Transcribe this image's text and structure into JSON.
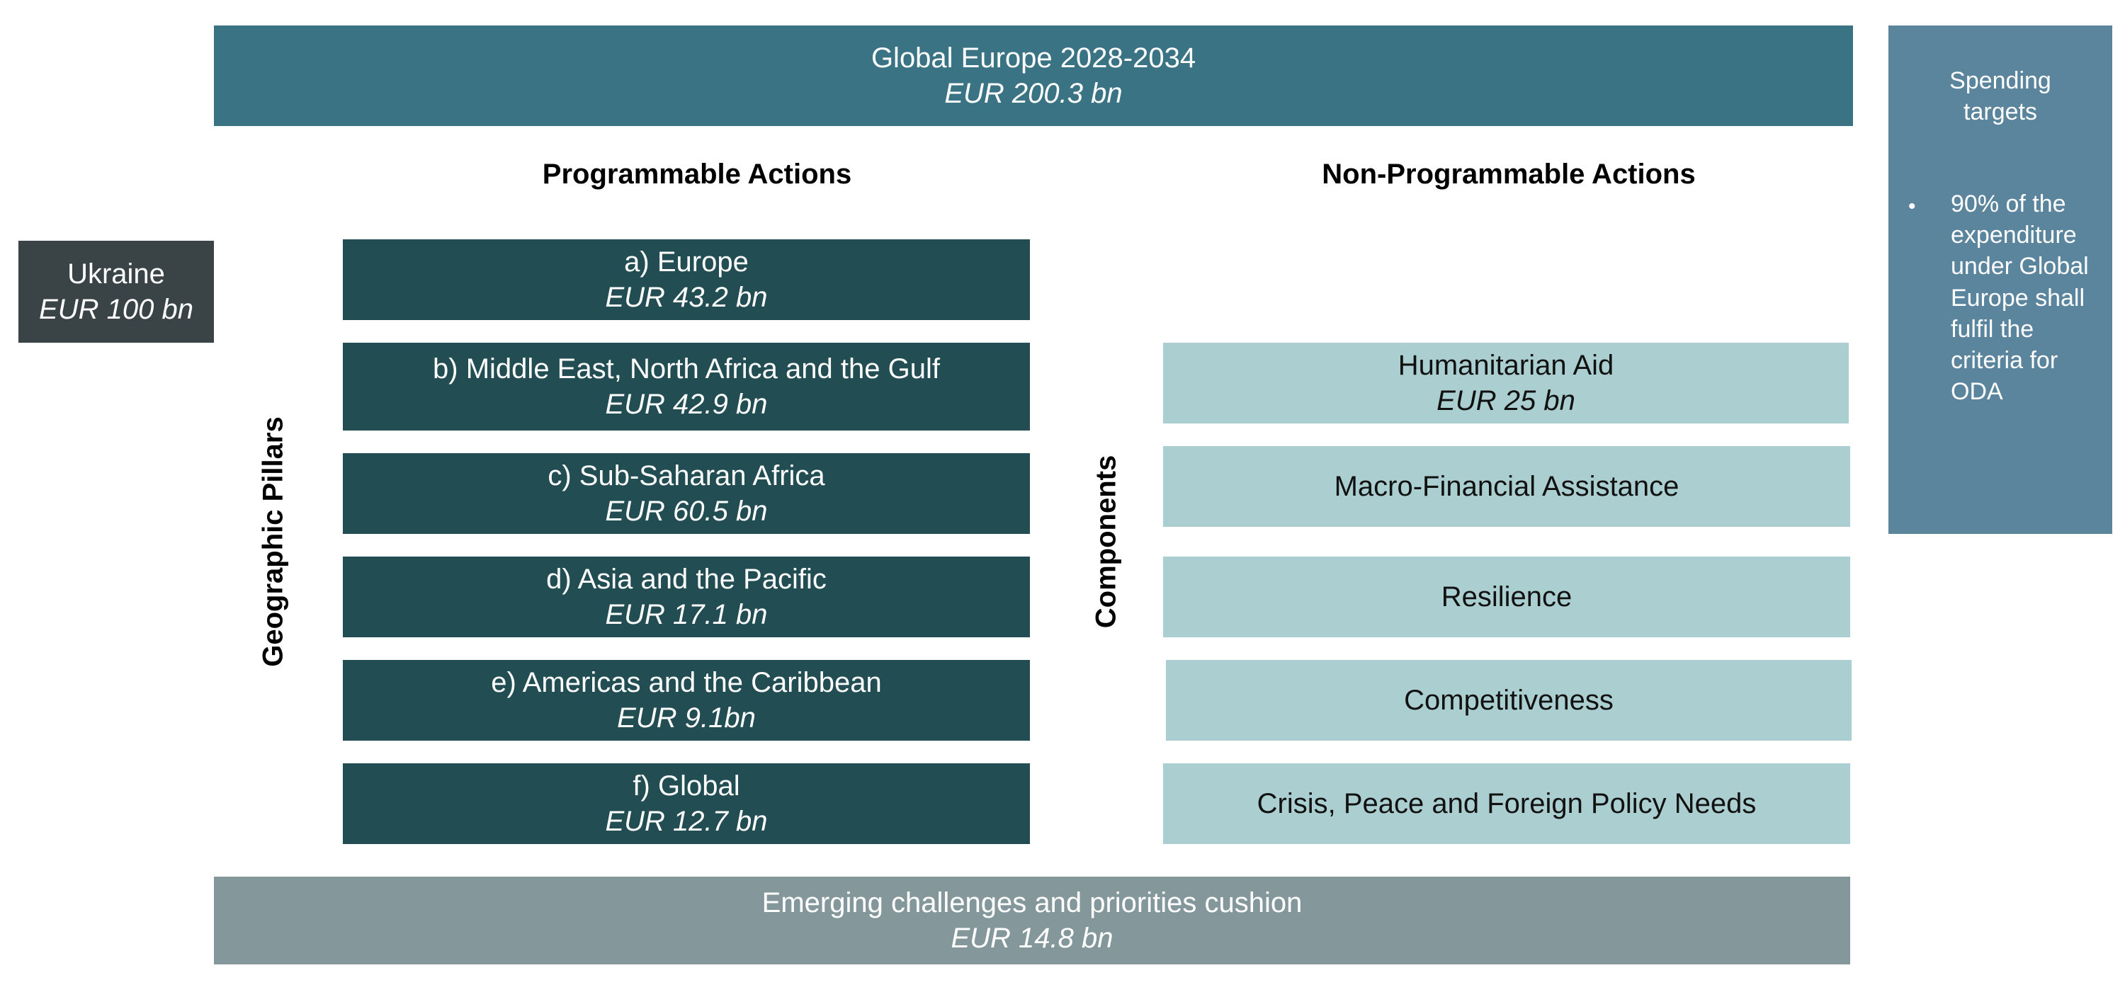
{
  "header": {
    "title": "Global Europe 2028-2034",
    "amount": "EUR 200.3 bn"
  },
  "ukraine": {
    "title": "Ukraine",
    "amount": "EUR 100 bn"
  },
  "programmable": {
    "heading": "Programmable Actions",
    "side_label": "Geographic Pillars",
    "pillars": [
      {
        "label": "a) Europe",
        "amount": "EUR 43.2 bn"
      },
      {
        "label": "b) Middle East, North Africa and the Gulf",
        "amount": "EUR 42.9 bn"
      },
      {
        "label": "c) Sub-Saharan Africa",
        "amount": "EUR 60.5 bn"
      },
      {
        "label": "d) Asia and the Pacific",
        "amount": "EUR 17.1 bn"
      },
      {
        "label": "e) Americas and the Caribbean",
        "amount": "EUR  9.1bn"
      },
      {
        "label": "f) Global",
        "amount": "EUR 12.7 bn"
      }
    ]
  },
  "non_programmable": {
    "heading": "Non-Programmable Actions",
    "side_label": "Components",
    "components": [
      {
        "label": "Humanitarian Aid",
        "amount": "EUR 25 bn"
      },
      {
        "label": "Macro-Financial Assistance"
      },
      {
        "label": "Resilience"
      },
      {
        "label": "Competitiveness"
      },
      {
        "label": "Crisis, Peace and Foreign Policy Needs"
      }
    ]
  },
  "cushion": {
    "title": "Emerging challenges and priorities cushion",
    "amount": "EUR 14.8 bn"
  },
  "spending_targets": {
    "title": "Spending targets",
    "bullet": "90% of the expenditure under Global Europe shall fulfil the criteria for ODA"
  },
  "colors": {
    "header": "#3a7384",
    "ukraine": "#3a4346",
    "pillar": "#224e53",
    "component": "#abcfd1",
    "cushion": "#84989b",
    "spending": "#5b849d"
  }
}
